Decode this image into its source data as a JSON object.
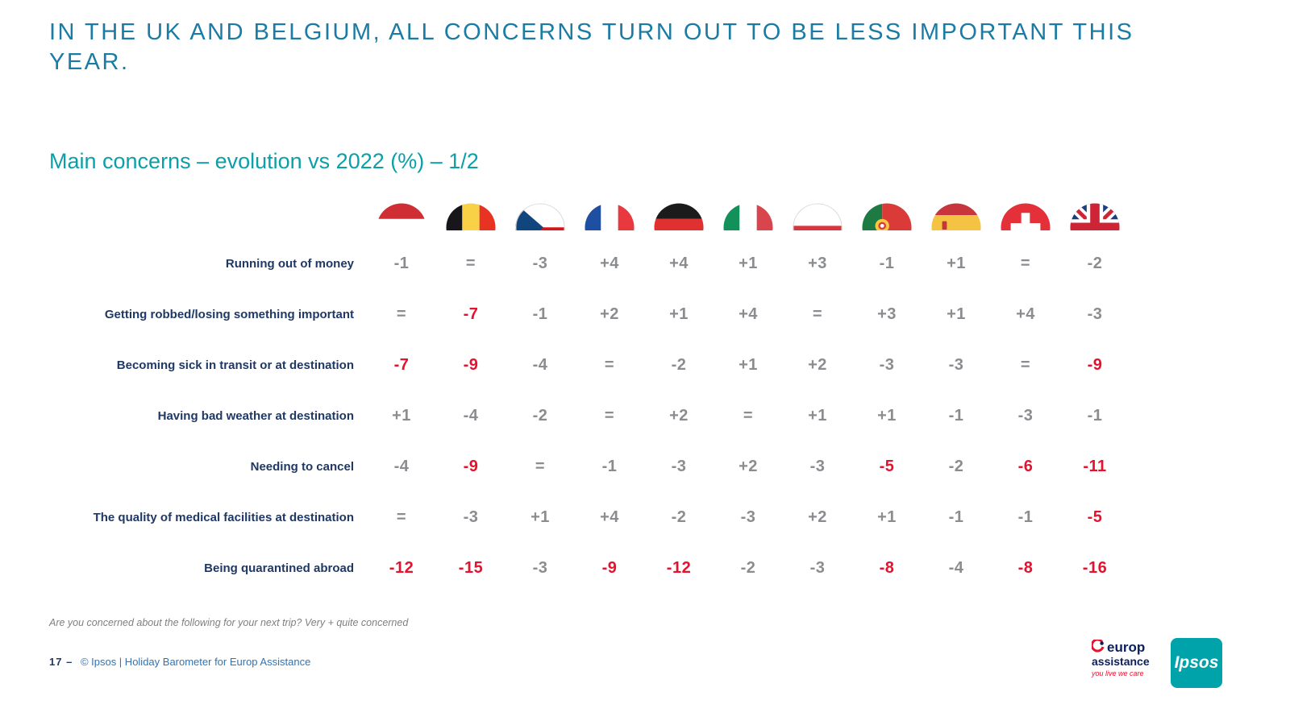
{
  "header": {
    "title": "IN THE UK AND BELGIUM, ALL CONCERNS TURN OUT TO BE LESS IMPORTANT THIS YEAR.",
    "subtitle": "Main concerns – evolution vs 2022 (%) – 1/2"
  },
  "chart_data": {
    "type": "table",
    "title": "Main concerns – evolution vs 2022 (%) – 1/2",
    "unit": "percentage point change vs 2022",
    "red_threshold": -5,
    "columns": [
      {
        "name": "Austria",
        "flag": "at"
      },
      {
        "name": "Belgium",
        "flag": "be"
      },
      {
        "name": "Czech Republic",
        "flag": "cz"
      },
      {
        "name": "France",
        "flag": "fr"
      },
      {
        "name": "Germany",
        "flag": "de"
      },
      {
        "name": "Italy",
        "flag": "it"
      },
      {
        "name": "Poland",
        "flag": "pl"
      },
      {
        "name": "Portugal",
        "flag": "pt"
      },
      {
        "name": "Spain",
        "flag": "es"
      },
      {
        "name": "Switzerland",
        "flag": "ch"
      },
      {
        "name": "United Kingdom",
        "flag": "gb"
      }
    ],
    "rows": [
      {
        "label": "Running out of money",
        "values": [
          "-1",
          "=",
          "-3",
          "+4",
          "+4",
          "+1",
          "+3",
          "-1",
          "+1",
          "=",
          "-2"
        ]
      },
      {
        "label": "Getting robbed/losing something important",
        "values": [
          "=",
          "-7",
          "-1",
          "+2",
          "+1",
          "+4",
          "=",
          "+3",
          "+1",
          "+4",
          "-3"
        ]
      },
      {
        "label": "Becoming sick in transit or at destination",
        "values": [
          "-7",
          "-9",
          "-4",
          "=",
          "-2",
          "+1",
          "+2",
          "-3",
          "-3",
          "=",
          "-9"
        ]
      },
      {
        "label": "Having bad weather at destination",
        "values": [
          "+1",
          "-4",
          "-2",
          "=",
          "+2",
          "=",
          "+1",
          "+1",
          "-1",
          "-3",
          "-1"
        ]
      },
      {
        "label": "Needing to cancel",
        "values": [
          "-4",
          "-9",
          "=",
          "-1",
          "-3",
          "+2",
          "-3",
          "-5",
          "-2",
          "-6",
          "-11"
        ]
      },
      {
        "label": "The quality of medical facilities at destination",
        "values": [
          "=",
          "-3",
          "+1",
          "+4",
          "-2",
          "-3",
          "+2",
          "+1",
          "-1",
          "-1",
          "-5"
        ]
      },
      {
        "label": "Being quarantined abroad",
        "values": [
          "-12",
          "-15",
          "-3",
          "-9",
          "-12",
          "-2",
          "-3",
          "-8",
          "-4",
          "-8",
          "-16"
        ]
      }
    ],
    "colors": {
      "value_default": "#8A8C8F",
      "value_highlight": "#E8112D",
      "label": "#1F3864",
      "title": "#1A7CA4",
      "subtitle": "#0BA0A8"
    },
    "legend_position": "none",
    "grid": false
  },
  "footnote": "Are you concerned about the following for your next trip? Very + quite concerned",
  "footer": {
    "page": "17 –",
    "credit": "© Ipsos | Holiday Barometer for Europ Assistance"
  },
  "logos": {
    "europ_assistance": {
      "line1": "europ",
      "line2": "assistance",
      "tagline": "you live we care"
    },
    "ipsos": "Ipsos"
  }
}
